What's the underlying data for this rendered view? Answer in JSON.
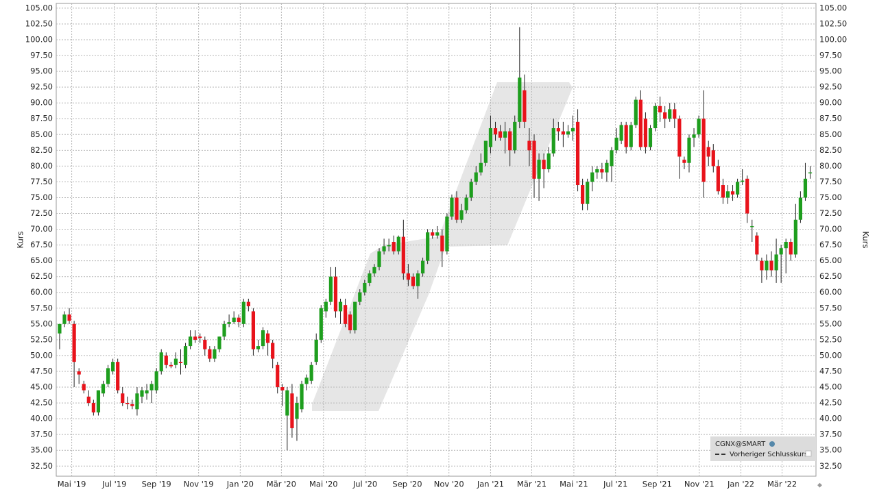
{
  "chart_data": {
    "type": "candlestick",
    "y_label": "Kurs",
    "up_color": "#1e9e1e",
    "down_color": "#e8131b",
    "ylim": [
      30.9,
      105.75
    ],
    "xlim": [
      -0.7,
      156.2
    ],
    "grid": true,
    "yticks": [
      {
        "value": 32.5,
        "label": "32.50"
      },
      {
        "value": 35,
        "label": "35.00"
      },
      {
        "value": 37.5,
        "label": "37.50"
      },
      {
        "value": 40,
        "label": "40.00"
      },
      {
        "value": 42.5,
        "label": "42.50"
      },
      {
        "value": 45,
        "label": "45.00"
      },
      {
        "value": 47.5,
        "label": "47.50"
      },
      {
        "value": 50,
        "label": "50.00"
      },
      {
        "value": 52.5,
        "label": "52.50"
      },
      {
        "value": 55,
        "label": "55.00"
      },
      {
        "value": 57.5,
        "label": "57.50"
      },
      {
        "value": 60,
        "label": "60.00"
      },
      {
        "value": 62.5,
        "label": "62.50"
      },
      {
        "value": 65,
        "label": "65.00"
      },
      {
        "value": 67.5,
        "label": "67.50"
      },
      {
        "value": 70,
        "label": "70.00"
      },
      {
        "value": 72.5,
        "label": "72.50"
      },
      {
        "value": 75,
        "label": "75.00"
      },
      {
        "value": 77.5,
        "label": "77.50"
      },
      {
        "value": 80,
        "label": "80.00"
      },
      {
        "value": 82.5,
        "label": "82.50"
      },
      {
        "value": 85,
        "label": "85.00"
      },
      {
        "value": 87.5,
        "label": "87.50"
      },
      {
        "value": 90,
        "label": "90.00"
      },
      {
        "value": 92.5,
        "label": "92.50"
      },
      {
        "value": 95,
        "label": "95.00"
      },
      {
        "value": 97.5,
        "label": "97.50"
      },
      {
        "value": 100,
        "label": "100.00"
      },
      {
        "value": 102.5,
        "label": "102.50"
      },
      {
        "value": 105,
        "label": "105.00"
      }
    ],
    "xticks": [
      {
        "value": 2.5,
        "label": "Mai '19"
      },
      {
        "value": 11.3,
        "label": "Jul '19"
      },
      {
        "value": 20,
        "label": "Sep '19"
      },
      {
        "value": 28.7,
        "label": "Nov '19"
      },
      {
        "value": 37.3,
        "label": "Jan '20"
      },
      {
        "value": 45.8,
        "label": "Mär '20"
      },
      {
        "value": 54.5,
        "label": "Mai '20"
      },
      {
        "value": 63.1,
        "label": "Jul '20"
      },
      {
        "value": 71.8,
        "label": "Sep '20"
      },
      {
        "value": 80.4,
        "label": "Nov '20"
      },
      {
        "value": 89,
        "label": "Jan '21"
      },
      {
        "value": 97.5,
        "label": "Mär '21"
      },
      {
        "value": 106.2,
        "label": "Mai '21"
      },
      {
        "value": 114.8,
        "label": "Jul '21"
      },
      {
        "value": 123.4,
        "label": "Sep '21"
      },
      {
        "value": 132.1,
        "label": "Nov '21"
      },
      {
        "value": 140.7,
        "label": "Jan '22"
      },
      {
        "value": 149.2,
        "label": "Mär '22"
      }
    ],
    "legend": {
      "symbol": "CGNX@SMART",
      "previous_close": "Vorheriger Schlusskurs"
    },
    "candles": [
      [
        53.5,
        55,
        51,
        55
      ],
      [
        55,
        57,
        54.5,
        56.5
      ],
      [
        56.5,
        57.5,
        55,
        55.5
      ],
      [
        55,
        55.5,
        45,
        49
      ],
      [
        47.5,
        48,
        45.5,
        47
      ],
      [
        45.5,
        46,
        44,
        44.5
      ],
      [
        43.5,
        44.5,
        42,
        42.5
      ],
      [
        42.5,
        43,
        40.5,
        41
      ],
      [
        41,
        44.5,
        40.5,
        44.5
      ],
      [
        44,
        46,
        43.5,
        45.5
      ],
      [
        45.5,
        48.5,
        45,
        48
      ],
      [
        47.5,
        49.5,
        47,
        49
      ],
      [
        49,
        49.5,
        44,
        44.5
      ],
      [
        44,
        45,
        42,
        42.5
      ],
      [
        42.5,
        43.5,
        41.5,
        42.3
      ],
      [
        42.3,
        43,
        41.5,
        42
      ],
      [
        41.5,
        45,
        40.5,
        44
      ],
      [
        43.5,
        45,
        42.5,
        44.5
      ],
      [
        44,
        45.5,
        43,
        44.5
      ],
      [
        44.5,
        46,
        42.5,
        45.5
      ],
      [
        44.5,
        48,
        44,
        47.5
      ],
      [
        47.5,
        51,
        47,
        50.5
      ],
      [
        50,
        50.5,
        48,
        48.5
      ],
      [
        48.5,
        49,
        48,
        48.3
      ],
      [
        48.5,
        50.5,
        48,
        49.5
      ],
      [
        49,
        51,
        47,
        48.8
      ],
      [
        48.5,
        52,
        48,
        51.5
      ],
      [
        51.5,
        54,
        51,
        53
      ],
      [
        53,
        54,
        52,
        52.5
      ],
      [
        53,
        53.5,
        52,
        52.8
      ],
      [
        52.5,
        53,
        50,
        51
      ],
      [
        51,
        51.5,
        49,
        49.5
      ],
      [
        49.5,
        51.5,
        49,
        51
      ],
      [
        51,
        53,
        50.5,
        53
      ],
      [
        53,
        55.5,
        52.5,
        55
      ],
      [
        55,
        56.5,
        54.5,
        55.3
      ],
      [
        55.3,
        57,
        55,
        56
      ],
      [
        56,
        56.5,
        54.5,
        55.3
      ],
      [
        55,
        59,
        54.5,
        58.5
      ],
      [
        58.5,
        59,
        57,
        57.8
      ],
      [
        57,
        57.5,
        50,
        51
      ],
      [
        51,
        52.5,
        50.5,
        51.5
      ],
      [
        51.5,
        54.5,
        51,
        54
      ],
      [
        53.5,
        54,
        50,
        52
      ],
      [
        52,
        52.5,
        48,
        49.5
      ],
      [
        48.5,
        49,
        44,
        45
      ],
      [
        45,
        45.5,
        42,
        44.5
      ],
      [
        40.5,
        45,
        35,
        44.5
      ],
      [
        44,
        45.5,
        37,
        38.5
      ],
      [
        40,
        43.5,
        36.5,
        42.5
      ],
      [
        41.5,
        46,
        41,
        45.5
      ],
      [
        45.5,
        47,
        44.5,
        46.5
      ],
      [
        46,
        49,
        45.5,
        48.5
      ],
      [
        49,
        53.5,
        48.5,
        52.5
      ],
      [
        52.5,
        58,
        52,
        57.5
      ],
      [
        57,
        59,
        56,
        58.5
      ],
      [
        58.5,
        64,
        58,
        62.5
      ],
      [
        62.5,
        64,
        56,
        57
      ],
      [
        57,
        59,
        55,
        58.5
      ],
      [
        58,
        59,
        54.5,
        55
      ],
      [
        56.5,
        57,
        53.5,
        54
      ],
      [
        54,
        58.5,
        53.5,
        58.5
      ],
      [
        58.5,
        60.5,
        58,
        60
      ],
      [
        60,
        62,
        59.5,
        61.5
      ],
      [
        61.5,
        63.5,
        61,
        63
      ],
      [
        63,
        64.5,
        62.5,
        64
      ],
      [
        64,
        67,
        63.5,
        66.5
      ],
      [
        66.5,
        68.5,
        66,
        67.3
      ],
      [
        67.3,
        68.5,
        66.5,
        67.5
      ],
      [
        68,
        69,
        66,
        66.5
      ],
      [
        66.5,
        69,
        66,
        68.8
      ],
      [
        68.8,
        71.5,
        62,
        63
      ],
      [
        63,
        64.5,
        61,
        62
      ],
      [
        62.5,
        63,
        60.5,
        61
      ],
      [
        61,
        63.5,
        59,
        63
      ],
      [
        63,
        65.5,
        62.5,
        65
      ],
      [
        65,
        70,
        64.5,
        69.5
      ],
      [
        69.5,
        70,
        68.5,
        69
      ],
      [
        69,
        70.5,
        68.5,
        69.5
      ],
      [
        69,
        70,
        64,
        66.5
      ],
      [
        66.5,
        72.5,
        66,
        72
      ],
      [
        72,
        75.5,
        71.5,
        75
      ],
      [
        75,
        76,
        71,
        71.5
      ],
      [
        71.5,
        74,
        71,
        73
      ],
      [
        73,
        75.5,
        72.5,
        75
      ],
      [
        75,
        78,
        74.5,
        77.5
      ],
      [
        77.5,
        80,
        77,
        79
      ],
      [
        79,
        82,
        78.5,
        80.5
      ],
      [
        80.5,
        84,
        80,
        84
      ],
      [
        83,
        88,
        82,
        86
      ],
      [
        86,
        87,
        84,
        85
      ],
      [
        85.5,
        86.5,
        84,
        84.5
      ],
      [
        84.5,
        87,
        82,
        85.5
      ],
      [
        85.5,
        86,
        80,
        82.5
      ],
      [
        82.5,
        88,
        82,
        87
      ],
      [
        87,
        102,
        86,
        94
      ],
      [
        92,
        94.5,
        86,
        87
      ],
      [
        84,
        86,
        80,
        82.5
      ],
      [
        84,
        85,
        75,
        78
      ],
      [
        78,
        82,
        74.5,
        81
      ],
      [
        81,
        82,
        76.5,
        79.5
      ],
      [
        79.5,
        83,
        79,
        82
      ],
      [
        82,
        87.5,
        81.5,
        86
      ],
      [
        86,
        87,
        84,
        85.5
      ],
      [
        85.5,
        87,
        83,
        85
      ],
      [
        85,
        86.5,
        84.5,
        85.5
      ],
      [
        85.5,
        88,
        84,
        86
      ],
      [
        87,
        89,
        76,
        77
      ],
      [
        77,
        78,
        73,
        74
      ],
      [
        74,
        78,
        73,
        77.5
      ],
      [
        77.5,
        80,
        76,
        79
      ],
      [
        79,
        80,
        78,
        79.5
      ],
      [
        79.5,
        80.5,
        78,
        79
      ],
      [
        79,
        81,
        77.5,
        80.5
      ],
      [
        80,
        83,
        77.5,
        82.5
      ],
      [
        82.5,
        86,
        82,
        84.5
      ],
      [
        84,
        87,
        83.5,
        86.5
      ],
      [
        86.5,
        87,
        82,
        83
      ],
      [
        83,
        87,
        82.5,
        86.5
      ],
      [
        86.5,
        91,
        86,
        90.5
      ],
      [
        90.5,
        92,
        82.5,
        83
      ],
      [
        87.5,
        88.5,
        82,
        83
      ],
      [
        83,
        86.5,
        82.5,
        86
      ],
      [
        86,
        90,
        85.5,
        89.5
      ],
      [
        89.5,
        91,
        87,
        88.5
      ],
      [
        88.5,
        89.5,
        86,
        87.5
      ],
      [
        87.5,
        90,
        87,
        89
      ],
      [
        89,
        90,
        86,
        87.5
      ],
      [
        87.5,
        88,
        78,
        81.5
      ],
      [
        81,
        81.5,
        79.5,
        80.5
      ],
      [
        80.5,
        85,
        79,
        84.5
      ],
      [
        84.5,
        86,
        83,
        85
      ],
      [
        85,
        88,
        84.5,
        87.5
      ],
      [
        87.5,
        92,
        75,
        77.5
      ],
      [
        83,
        84,
        80,
        81.5
      ],
      [
        82.5,
        83.5,
        79,
        80
      ],
      [
        80,
        81,
        75.5,
        76
      ],
      [
        77,
        78,
        74,
        75
      ],
      [
        75,
        77,
        74,
        76
      ],
      [
        76,
        77,
        74.5,
        75.5
      ],
      [
        75.5,
        78,
        75,
        77.5
      ],
      [
        77.5,
        79.5,
        77,
        77.7
      ],
      [
        78,
        78.5,
        71,
        72.5
      ],
      [
        70.5,
        71.5,
        68,
        70.5
      ],
      [
        69,
        69.5,
        65,
        66
      ],
      [
        65,
        65.5,
        61.5,
        63.5
      ],
      [
        63.5,
        66,
        62,
        65
      ],
      [
        65,
        66.5,
        62.5,
        63.5
      ],
      [
        63.5,
        68.5,
        61.5,
        66
      ],
      [
        66,
        67.5,
        61.5,
        67
      ],
      [
        67,
        68.5,
        63,
        68
      ],
      [
        68,
        68.5,
        65,
        66
      ],
      [
        66,
        74,
        65.5,
        71.5
      ],
      [
        71.5,
        76,
        71,
        75
      ],
      [
        75,
        80.5,
        74.5,
        78
      ],
      [
        79,
        80,
        78,
        79
      ]
    ]
  }
}
